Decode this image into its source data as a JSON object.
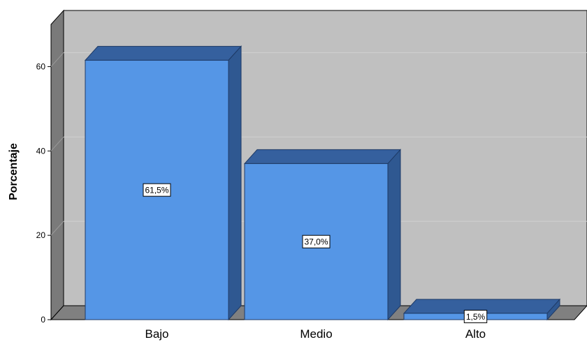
{
  "chart_data": {
    "type": "bar",
    "categories": [
      "Bajo",
      "Medio",
      "Alto"
    ],
    "values": [
      61.5,
      37.0,
      1.5
    ],
    "data_labels": [
      "61,5%",
      "37,0%",
      "1,5%"
    ],
    "title": "",
    "xlabel": "",
    "ylabel": "Porcentaje",
    "ylim": [
      0,
      70
    ],
    "yticks": [
      0,
      20,
      40,
      60
    ],
    "grid": true,
    "legend": "none",
    "style": "3d",
    "colors": {
      "bar_front": "#5596e6",
      "bar_side": "#2f5891",
      "bar_top": "#35609e",
      "wall": "#c0c0c0",
      "wall_side": "#7a7a7a",
      "floor": "#808080",
      "gridline": "#d0d0d0"
    }
  }
}
